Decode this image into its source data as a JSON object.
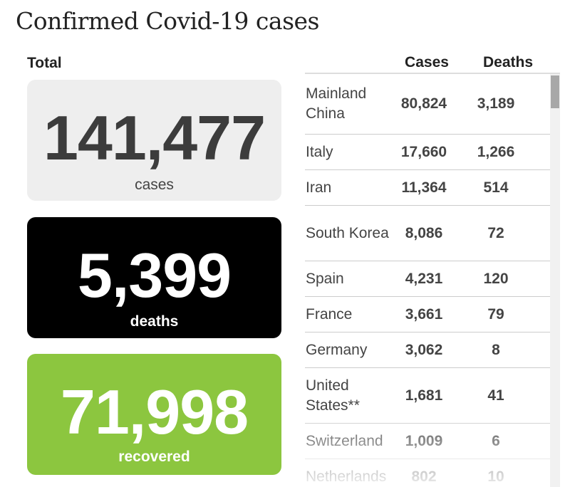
{
  "title": "Confirmed Covid-19 cases",
  "total_label": "Total",
  "stats": {
    "cases": {
      "number": "141,477",
      "label": "cases"
    },
    "deaths": {
      "number": "5,399",
      "label": "deaths"
    },
    "recovered": {
      "number": "71,998",
      "label": "recovered"
    }
  },
  "colors": {
    "cases_box": "#eeeeee",
    "deaths_box": "#000000",
    "recovered_box": "#8cc63f"
  },
  "table": {
    "headers": {
      "cases": "Cases",
      "deaths": "Deaths"
    },
    "rows": [
      {
        "country": "Mainland China",
        "cases": "80,824",
        "deaths": "3,189"
      },
      {
        "country": "Italy",
        "cases": "17,660",
        "deaths": "1,266"
      },
      {
        "country": "Iran",
        "cases": "11,364",
        "deaths": "514"
      },
      {
        "country": "South Korea",
        "cases": "8,086",
        "deaths": "72"
      },
      {
        "country": "Spain",
        "cases": "4,231",
        "deaths": "120"
      },
      {
        "country": "France",
        "cases": "3,661",
        "deaths": "79"
      },
      {
        "country": "Germany",
        "cases": "3,062",
        "deaths": "8"
      },
      {
        "country": "United States**",
        "cases": "1,681",
        "deaths": "41"
      },
      {
        "country": "Switzerland",
        "cases": "1,009",
        "deaths": "6"
      },
      {
        "country": "Netherlands",
        "cases": "802",
        "deaths": "10"
      }
    ]
  }
}
